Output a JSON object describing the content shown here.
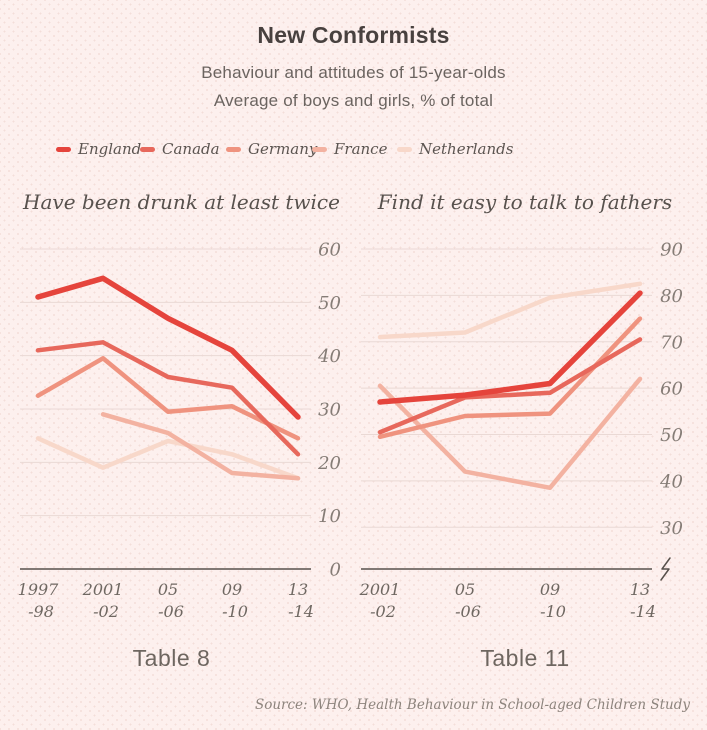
{
  "header": {
    "title": "New Conformists",
    "subtitle1": "Behaviour and attitudes of 15-year-olds",
    "subtitle2": "Average of boys and girls, % of total"
  },
  "legend": {
    "items": [
      {
        "label": "England",
        "color": "#e5443c"
      },
      {
        "label": "Canada",
        "color": "#e7685c"
      },
      {
        "label": "Germany",
        "color": "#ef937f"
      },
      {
        "label": "France",
        "color": "#f3b2a1"
      },
      {
        "label": "Netherlands",
        "color": "#f8d8ca"
      }
    ]
  },
  "chart_data": [
    {
      "type": "line",
      "title": "Have been drunk at least twice",
      "table_label": "Table 8",
      "categories": [
        "1997-98",
        "2001-02",
        "2005-06",
        "2009-10",
        "2013-14"
      ],
      "x_tick_lines": [
        [
          "1997",
          "-98"
        ],
        [
          "2001",
          "-02"
        ],
        [
          "05",
          "-06"
        ],
        [
          "09",
          "-10"
        ],
        [
          "13",
          "-14"
        ]
      ],
      "ylabel": "% of total",
      "ylim": [
        0,
        60
      ],
      "yticks": [
        0,
        10,
        20,
        30,
        40,
        50,
        60
      ],
      "grid": true,
      "axis_break": false,
      "legend_position": "top",
      "series": [
        {
          "name": "England",
          "color": "#e5443c",
          "values": [
            51,
            54.5,
            47,
            41,
            28.5
          ]
        },
        {
          "name": "Canada",
          "color": "#e7685c",
          "values": [
            41,
            42.5,
            36,
            34,
            21.5
          ]
        },
        {
          "name": "Germany",
          "color": "#ef937f",
          "values": [
            32.5,
            39.5,
            29.5,
            30.5,
            24.5
          ]
        },
        {
          "name": "France",
          "color": "#f3b2a1",
          "values": [
            null,
            29,
            25.5,
            18,
            17
          ]
        },
        {
          "name": "Netherlands",
          "color": "#f8d8ca",
          "values": [
            24.5,
            19,
            24,
            21.5,
            17
          ]
        }
      ]
    },
    {
      "type": "line",
      "title": "Find it easy to talk to fathers",
      "table_label": "Table 11",
      "categories": [
        "2001-02",
        "2005-06",
        "2009-10",
        "2013-14"
      ],
      "x_tick_lines": [
        [
          "2001",
          "-02"
        ],
        [
          "05",
          "-06"
        ],
        [
          "09",
          "-10"
        ],
        [
          "13",
          "-14"
        ]
      ],
      "ylabel": "% of total",
      "ylim": [
        21,
        90
      ],
      "yticks": [
        30,
        40,
        50,
        60,
        70,
        80,
        90
      ],
      "grid": true,
      "axis_break": true,
      "legend_position": "top",
      "series": [
        {
          "name": "England",
          "color": "#e5443c",
          "values": [
            57,
            58.5,
            61,
            80.5
          ]
        },
        {
          "name": "Canada",
          "color": "#e7685c",
          "values": [
            50.5,
            58,
            59,
            70.5
          ]
        },
        {
          "name": "Germany",
          "color": "#ef937f",
          "values": [
            49.5,
            54,
            54.5,
            75
          ]
        },
        {
          "name": "France",
          "color": "#f3b2a1",
          "values": [
            60.5,
            42,
            38.5,
            62
          ]
        },
        {
          "name": "Netherlands",
          "color": "#f8d8ca",
          "values": [
            71,
            72,
            79.5,
            82.5
          ]
        }
      ]
    }
  ],
  "footer": {
    "source": "Source: WHO, Health Behaviour in School-aged Children Study"
  }
}
